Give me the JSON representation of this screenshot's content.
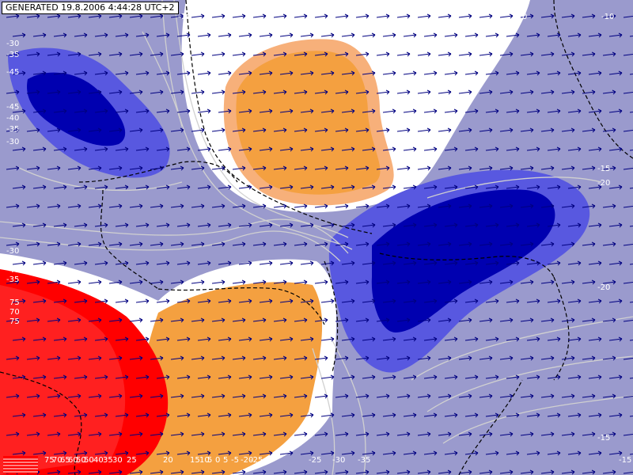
{
  "header": {
    "generated": "GENERATED 19.8.2006 4:44:28 UTC+2"
  },
  "map": {
    "background_color": "#9a9acd",
    "warm_color_1": "#f4a040",
    "warm_color_2": "#ff0000",
    "cold_color_1": "#0000b0",
    "cold_color_2": "#5858e0",
    "arrow_color": "#000080",
    "border_color": "#000000",
    "contour_color": "#d0d0d0"
  },
  "contour_labels": {
    "nw": [
      "-30",
      "-35",
      "-45",
      "-45",
      "-40",
      "-35",
      "-30"
    ],
    "ne": [
      "-10",
      "-10",
      "-15",
      "-20",
      "-20",
      "-15",
      "-15"
    ],
    "mid": [
      "-10"
    ],
    "west": [
      "-30",
      "-35",
      "-40",
      "-35",
      "75",
      "70",
      "75"
    ],
    "bottom": [
      "75",
      "70",
      "65",
      "60",
      "50",
      "50",
      "40",
      "35",
      "30",
      "25",
      "20",
      "15",
      "10",
      "5",
      "0",
      "5",
      "-5",
      "-20",
      "-25",
      "-25",
      "-30",
      "-35"
    ]
  },
  "legend": {
    "icon": "legend-swatch-icon"
  }
}
